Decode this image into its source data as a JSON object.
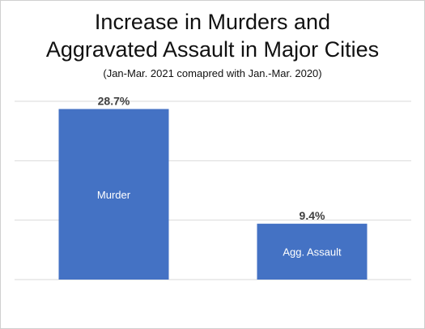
{
  "chart_data": {
    "type": "bar",
    "title_line1": "Increase in Murders and",
    "title_line2": "Aggravated Assault  in Major Cities",
    "subtitle": "(Jan-Mar. 2021 comapred with Jan.-Mar. 2020)",
    "categories": [
      "Murder",
      "Agg. Assault"
    ],
    "values": [
      28.7,
      9.4
    ],
    "value_labels": [
      "28.7%",
      "9.4%"
    ],
    "ylim": [
      0,
      30
    ],
    "grid": true,
    "legend": "none",
    "bar_color": "#4472c4",
    "grid_color": "#d9d9d9"
  }
}
